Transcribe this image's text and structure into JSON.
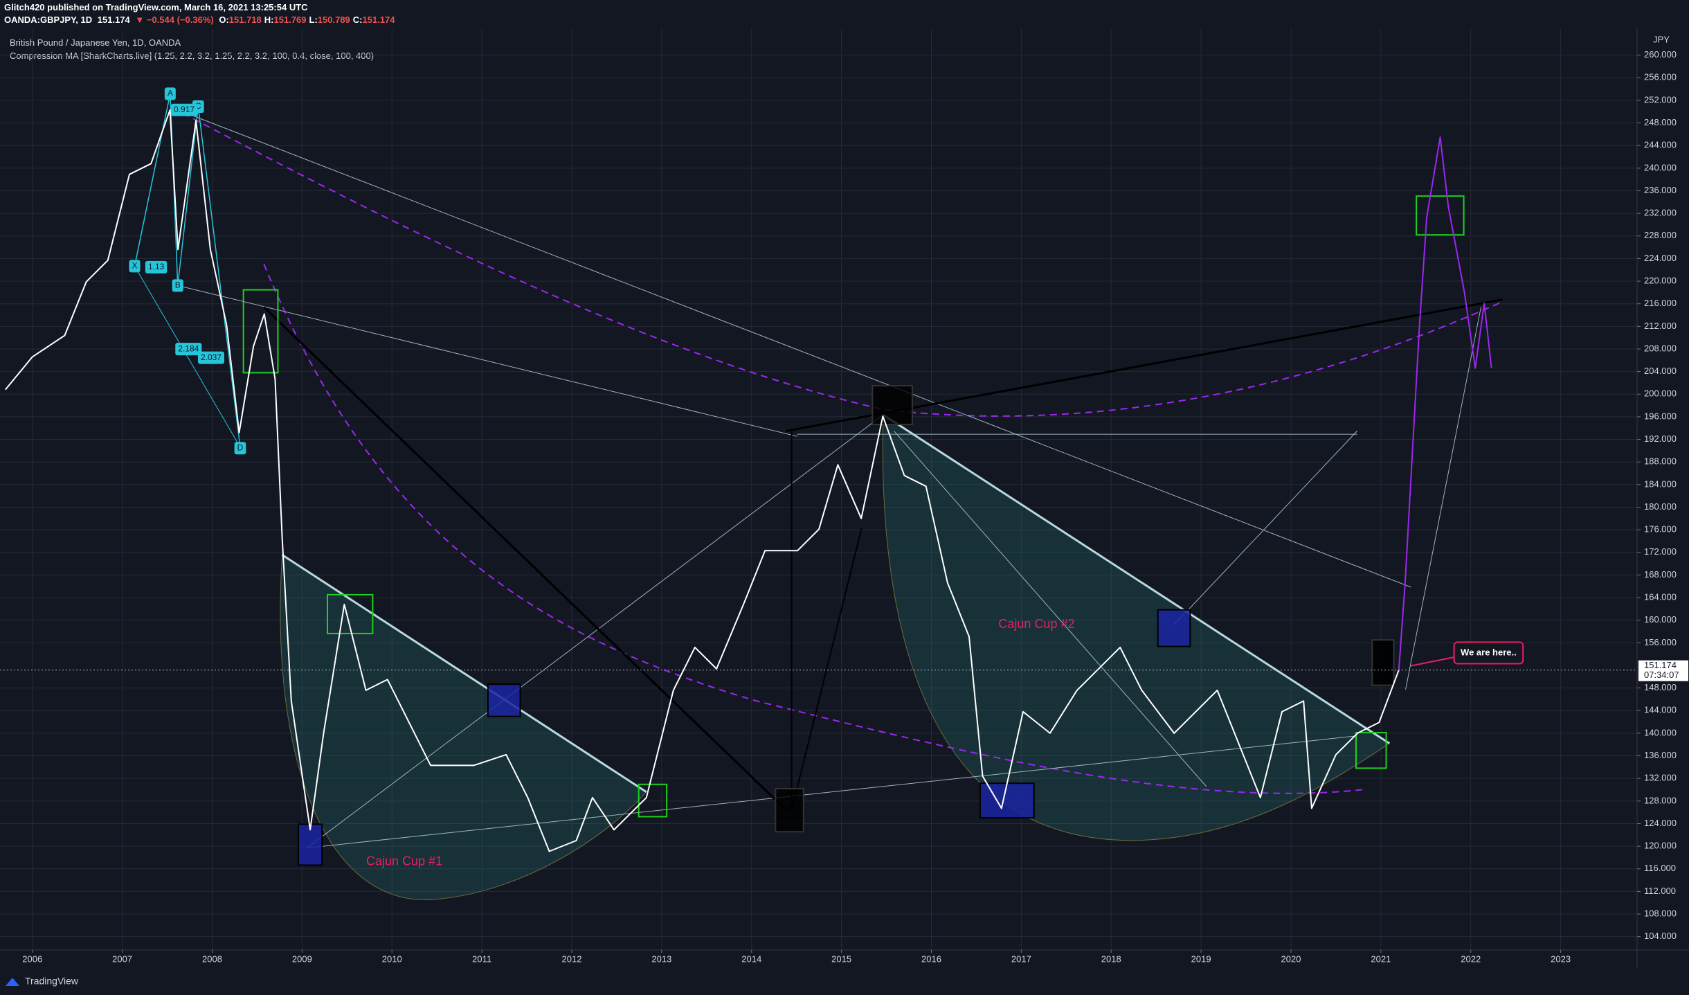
{
  "chart_data": {
    "type": "line",
    "title": "British Pound / Japanese Yen, 1D, OANDA",
    "subtitle": "Compression MA [SharkCharts.live] (1.25, 2.2, 3.2, 1.25, 2.2, 3.2, 100, 0.4, close, 100, 400)",
    "header": {
      "publisher": "Glitch420 published on TradingView.com, March 16, 2021 13:25:54 UTC",
      "symbol": "OANDA:GBPJPY, 1D",
      "last": "151.174",
      "change": "▼ −0.544 (−0.36%)",
      "ohlc": [
        {
          "label": "O:",
          "value": "151.718"
        },
        {
          "label": "H:",
          "value": "151.769"
        },
        {
          "label": "L:",
          "value": "150.789"
        },
        {
          "label": "C:",
          "value": "151.174"
        }
      ]
    },
    "y_unit": "JPY",
    "countdown": "07:34:07",
    "footer": "TradingView",
    "annotations": [
      "Cajun Cup #1",
      "Cajun Cup #2",
      "We are here..",
      "A",
      "X",
      "B",
      "C",
      "D",
      "0.917",
      "1.13",
      "2.184",
      "2.037"
    ],
    "series": [
      {
        "color": "#ffffff",
        "x": [
          2005.7,
          2006,
          2006.36,
          2006.6,
          2006.84,
          2007.08,
          2007.32,
          2007.53,
          2007.62,
          2007.82,
          2007.98,
          2008.16,
          2008.3,
          2008.46,
          2008.58,
          2008.7,
          2008.78,
          2008.88,
          2009.09,
          2009.24,
          2009.47,
          2009.71,
          2009.95,
          2010.43,
          2010.91,
          2011.27,
          2011.51,
          2011.75,
          2012.05,
          2012.23,
          2012.47,
          2012.83,
          2013.13,
          2013.37,
          2013.61,
          2013.91,
          2014.15,
          2014.51,
          2014.75,
          2014.96,
          2015.22,
          2015.46,
          2015.7,
          2015.94,
          2016.18,
          2016.42,
          2016.57,
          2016.78,
          2017.02,
          2017.32,
          2017.62,
          2018.1,
          2018.34,
          2018.7,
          2019.18,
          2019.42,
          2019.66,
          2019.9,
          2020.14,
          2020.23,
          2020.5,
          2020.74,
          2020.98,
          2021.2
        ],
        "values": [
          200.8,
          206.6,
          210.4,
          219.9,
          223.7,
          238.9,
          240.8,
          250.3,
          225.6,
          248.4,
          225.6,
          212.3,
          193.2,
          208.5,
          214.2,
          202.7,
          174.2,
          145.7,
          122.9,
          140.0,
          162.8,
          147.6,
          149.5,
          134.3,
          134.3,
          136.2,
          128.6,
          119.1,
          121.0,
          128.6,
          122.9,
          128.6,
          147.6,
          155.2,
          151.4,
          162.8,
          172.3,
          172.3,
          176.1,
          187.5,
          178.0,
          196.1,
          185.6,
          183.7,
          166.6,
          157.1,
          132.4,
          126.7,
          143.8,
          140.0,
          147.6,
          155.2,
          147.6,
          140.0,
          147.6,
          138.1,
          128.6,
          143.8,
          145.7,
          126.7,
          136.2,
          140.0,
          141.9,
          151.174
        ]
      },
      {
        "color": "#9c27f0",
        "x": [
          2021.2,
          2021.27,
          2021.43,
          2021.51,
          2021.66,
          2021.75,
          2021.93,
          2022.05,
          2022.15,
          2022.23
        ],
        "values": [
          151.174,
          166.6,
          212.3,
          231.3,
          245.5,
          233.2,
          218.0,
          204.6,
          216.1,
          204.6
        ]
      }
    ],
    "xlim": [
      2005.64,
      2023.85
    ],
    "xticks": [
      2006,
      2007,
      2008,
      2009,
      2010,
      2011,
      2012,
      2013,
      2014,
      2015,
      2016,
      2017,
      2018,
      2019,
      2020,
      2021,
      2022,
      2023
    ],
    "ylim": [
      102,
      264
    ],
    "yticks": [
      {
        "value": 104,
        "label": "104.000"
      },
      {
        "value": 108,
        "label": "108.000"
      },
      {
        "value": 112,
        "label": "112.000"
      },
      {
        "value": 116,
        "label": "116.000"
      },
      {
        "value": 120,
        "label": "120.000"
      },
      {
        "value": 124,
        "label": "124.000"
      },
      {
        "value": 128,
        "label": "128.000"
      },
      {
        "value": 132,
        "label": "132.000"
      },
      {
        "value": 136,
        "label": "136.000"
      },
      {
        "value": 140,
        "label": "140.000"
      },
      {
        "value": 144,
        "label": "144.000"
      },
      {
        "value": 148,
        "label": "148.000"
      },
      {
        "value": 156,
        "label": "156.000"
      },
      {
        "value": 160,
        "label": "160.000"
      },
      {
        "value": 164,
        "label": "164.000"
      },
      {
        "value": 168,
        "label": "168.000"
      },
      {
        "value": 172,
        "label": "172.000"
      },
      {
        "value": 176,
        "label": "176.000"
      },
      {
        "value": 180,
        "label": "180.000"
      },
      {
        "value": 184,
        "label": "184.000"
      },
      {
        "value": 188,
        "label": "188.000"
      },
      {
        "value": 192,
        "label": "192.000"
      },
      {
        "value": 196,
        "label": "196.000"
      },
      {
        "value": 200,
        "label": "200.000"
      },
      {
        "value": 204,
        "label": "204.000"
      },
      {
        "value": 208,
        "label": "208.000"
      },
      {
        "value": 212,
        "label": "212.000"
      },
      {
        "value": 216,
        "label": "216.000"
      },
      {
        "value": 220,
        "label": "220.000"
      },
      {
        "value": 224,
        "label": "224.000"
      },
      {
        "value": 228,
        "label": "228.000"
      },
      {
        "value": 232,
        "label": "232.000"
      },
      {
        "value": 236,
        "label": "236.000"
      },
      {
        "value": 240,
        "label": "240.000"
      },
      {
        "value": 244,
        "label": "244.000"
      },
      {
        "value": 248,
        "label": "248.000"
      },
      {
        "value": 252,
        "label": "252.000"
      },
      {
        "value": 256,
        "label": "256.000"
      },
      {
        "value": 260,
        "label": "260.000"
      }
    ],
    "grid": true
  }
}
